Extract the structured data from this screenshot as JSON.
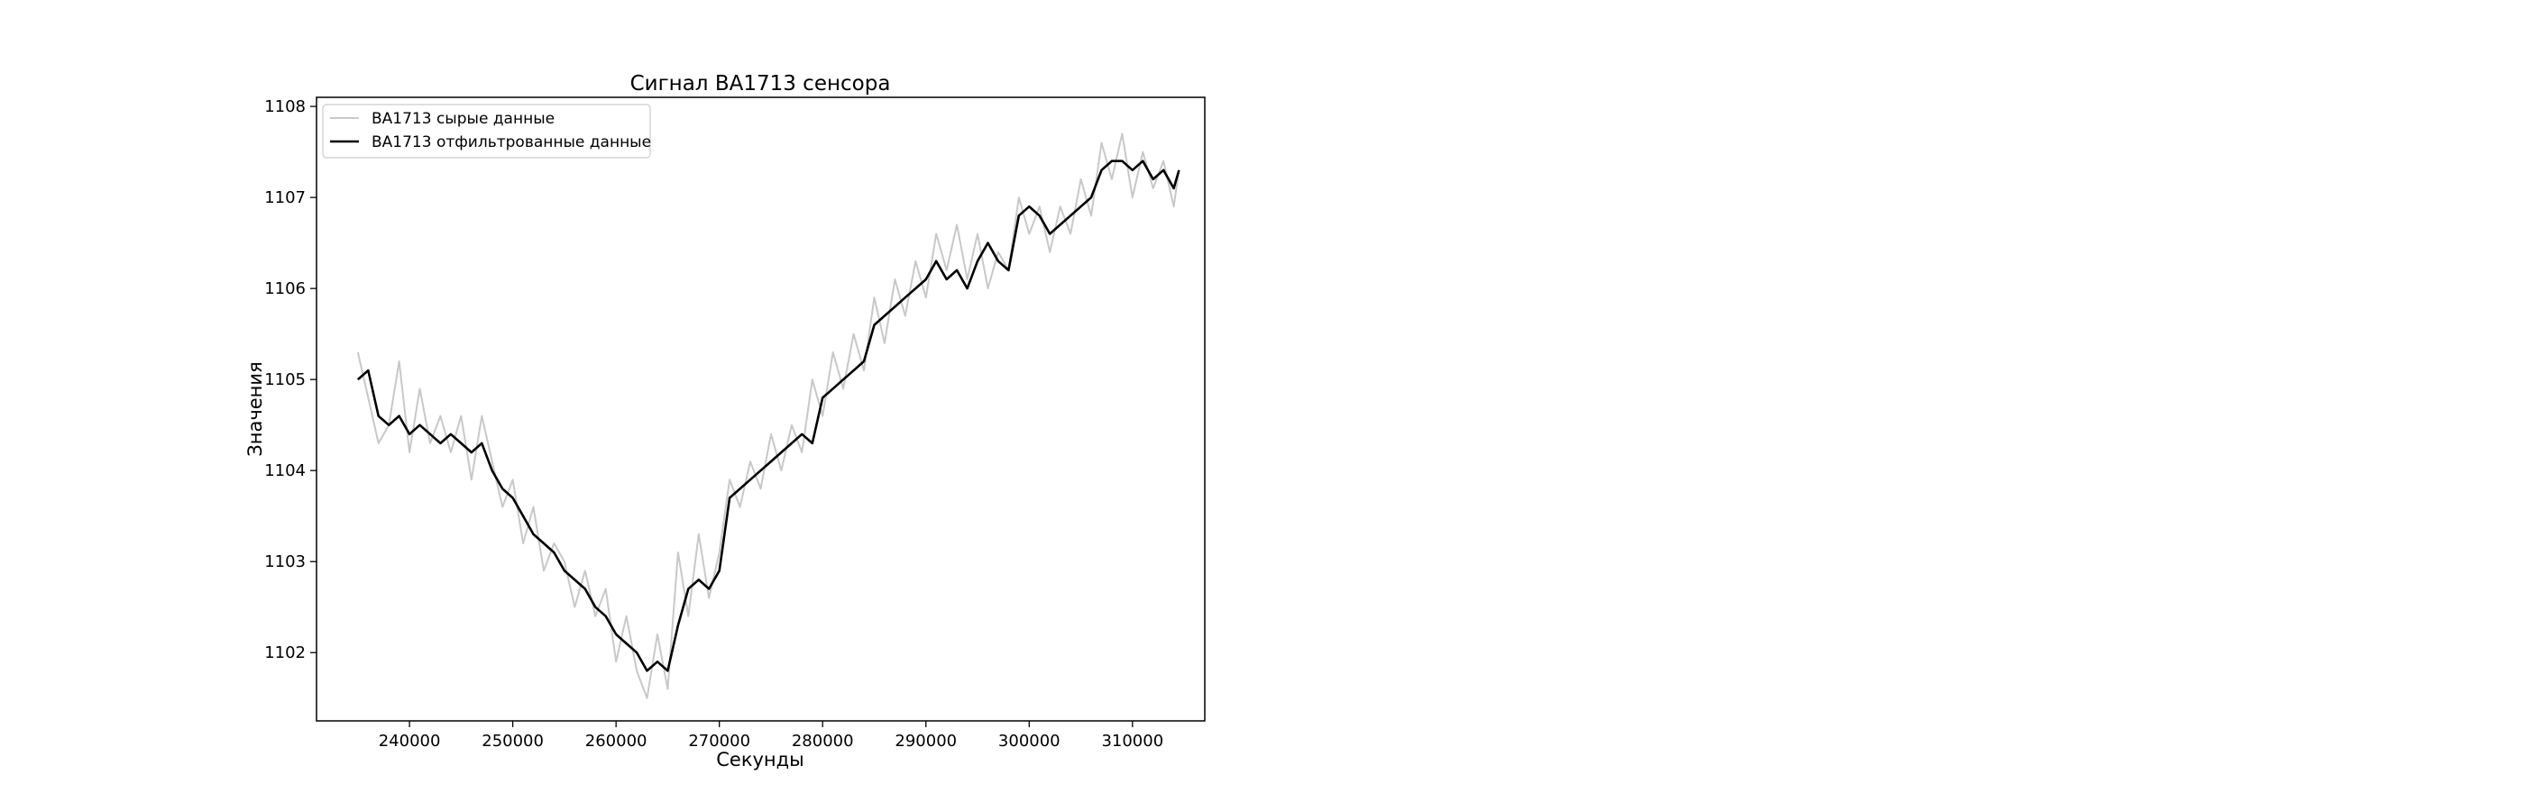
{
  "chart_data": {
    "type": "line",
    "title": "Сигнал BA1713 сенсора",
    "xlabel": "Секунды",
    "ylabel": "Значения",
    "xlim": [
      231000,
      317000
    ],
    "ylim": [
      1101.25,
      1108.1
    ],
    "x_ticks": [
      240000,
      250000,
      260000,
      270000,
      280000,
      290000,
      300000,
      310000
    ],
    "x_tick_labels": [
      "240000",
      "250000",
      "260000",
      "270000",
      "280000",
      "290000",
      "300000",
      "310000"
    ],
    "y_ticks": [
      1102,
      1103,
      1104,
      1105,
      1106,
      1107,
      1108
    ],
    "y_tick_labels": [
      "1102",
      "1103",
      "1104",
      "1105",
      "1106",
      "1107",
      "1108"
    ],
    "grid": false,
    "legend_position": "top-left",
    "series": [
      {
        "name": "BA1713 сырые данные",
        "color": "#c8c8c8",
        "x": [
          235000,
          236000,
          237000,
          238000,
          239000,
          240000,
          241000,
          242000,
          243000,
          244000,
          245000,
          246000,
          247000,
          248000,
          249000,
          250000,
          251000,
          252000,
          253000,
          254000,
          255000,
          256000,
          257000,
          258000,
          259000,
          260000,
          261000,
          262000,
          263000,
          264000,
          265000,
          266000,
          267000,
          268000,
          269000,
          270000,
          271000,
          272000,
          273000,
          274000,
          275000,
          276000,
          277000,
          278000,
          279000,
          280000,
          281000,
          282000,
          283000,
          284000,
          285000,
          286000,
          287000,
          288000,
          289000,
          290000,
          291000,
          292000,
          293000,
          294000,
          295000,
          296000,
          297000,
          298000,
          299000,
          300000,
          301000,
          302000,
          303000,
          304000,
          305000,
          306000,
          307000,
          308000,
          309000,
          310000,
          311000,
          312000,
          313000,
          314000,
          314500
        ],
        "y": [
          1105.3,
          1104.8,
          1104.3,
          1104.5,
          1105.2,
          1104.2,
          1104.9,
          1104.3,
          1104.6,
          1104.2,
          1104.6,
          1103.9,
          1104.6,
          1104.1,
          1103.6,
          1103.9,
          1103.2,
          1103.6,
          1102.9,
          1103.2,
          1103.0,
          1102.5,
          1102.9,
          1102.4,
          1102.7,
          1101.9,
          1102.4,
          1101.8,
          1101.5,
          1102.2,
          1101.6,
          1103.1,
          1102.4,
          1103.3,
          1102.6,
          1103.1,
          1103.9,
          1103.6,
          1104.1,
          1103.8,
          1104.4,
          1104.0,
          1104.5,
          1104.2,
          1105.0,
          1104.6,
          1105.3,
          1104.9,
          1105.5,
          1105.1,
          1105.9,
          1105.4,
          1106.1,
          1105.7,
          1106.3,
          1105.9,
          1106.6,
          1106.2,
          1106.7,
          1106.1,
          1106.6,
          1106.0,
          1106.4,
          1106.2,
          1107.0,
          1106.6,
          1106.9,
          1106.4,
          1106.9,
          1106.6,
          1107.2,
          1106.8,
          1107.6,
          1107.2,
          1107.7,
          1107.0,
          1107.5,
          1107.1,
          1107.4,
          1106.9,
          1107.3
        ]
      },
      {
        "name": "BA1713 отфильтрованные данные",
        "color": "#000000",
        "x": [
          235000,
          236000,
          237000,
          238000,
          239000,
          240000,
          241000,
          242000,
          243000,
          244000,
          245000,
          246000,
          247000,
          248000,
          249000,
          250000,
          251000,
          252000,
          253000,
          254000,
          255000,
          256000,
          257000,
          258000,
          259000,
          260000,
          261000,
          262000,
          263000,
          264000,
          265000,
          266000,
          267000,
          268000,
          269000,
          270000,
          271000,
          272000,
          273000,
          274000,
          275000,
          276000,
          277000,
          278000,
          279000,
          280000,
          281000,
          282000,
          283000,
          284000,
          285000,
          286000,
          287000,
          288000,
          289000,
          290000,
          291000,
          292000,
          293000,
          294000,
          295000,
          296000,
          297000,
          298000,
          299000,
          300000,
          301000,
          302000,
          303000,
          304000,
          305000,
          306000,
          307000,
          308000,
          309000,
          310000,
          311000,
          312000,
          313000,
          314000,
          314500
        ],
        "y": [
          1105.0,
          1105.1,
          1104.6,
          1104.5,
          1104.6,
          1104.4,
          1104.5,
          1104.4,
          1104.3,
          1104.4,
          1104.3,
          1104.2,
          1104.3,
          1104.0,
          1103.8,
          1103.7,
          1103.5,
          1103.3,
          1103.2,
          1103.1,
          1102.9,
          1102.8,
          1102.7,
          1102.5,
          1102.4,
          1102.2,
          1102.1,
          1102.0,
          1101.8,
          1101.9,
          1101.8,
          1102.3,
          1102.7,
          1102.8,
          1102.7,
          1102.9,
          1103.7,
          1103.8,
          1103.9,
          1104.0,
          1104.1,
          1104.2,
          1104.3,
          1104.4,
          1104.3,
          1104.8,
          1104.9,
          1105.0,
          1105.1,
          1105.2,
          1105.6,
          1105.7,
          1105.8,
          1105.9,
          1106.0,
          1106.1,
          1106.3,
          1106.1,
          1106.2,
          1106.0,
          1106.3,
          1106.5,
          1106.3,
          1106.2,
          1106.8,
          1106.9,
          1106.8,
          1106.6,
          1106.7,
          1106.8,
          1106.9,
          1107.0,
          1107.3,
          1107.4,
          1107.4,
          1107.3,
          1107.4,
          1107.2,
          1107.3,
          1107.1,
          1107.3
        ]
      }
    ]
  }
}
